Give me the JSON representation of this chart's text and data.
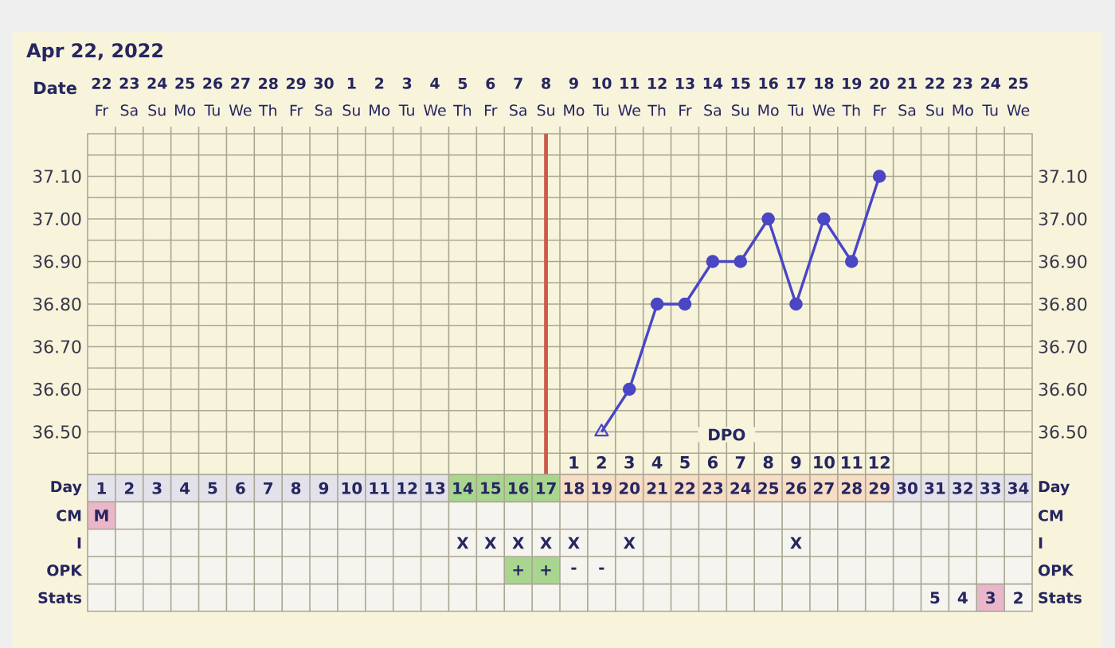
{
  "chart_data": [
    {
      "type": "line",
      "title": "Apr 22, 2022",
      "xlabel": "Date",
      "x2label": "DPO",
      "xlim": [
        "2022-04-21T12:00",
        "2022-05-25T12:00"
      ],
      "xticks": [
        {
          "value": "2022-04-22",
          "label": "**22** Fr"
        },
        {
          "value": "2022-04-23",
          "label": "**23** Sa"
        },
        {
          "value": "2022-04-24",
          "label": "**24** Su"
        },
        {
          "value": "2022-04-25",
          "label": "**25** Mo"
        },
        {
          "value": "2022-04-26",
          "label": "**26** Tu"
        },
        {
          "value": "2022-04-27",
          "label": "**27** We"
        },
        {
          "value": "2022-04-28",
          "label": "**28** Th"
        },
        {
          "value": "2022-04-29",
          "label": "**29** Fr"
        },
        {
          "value": "2022-04-30",
          "label": "**30** Sa"
        },
        {
          "value": "2022-05-01",
          "label": "**1** Su"
        },
        {
          "value": "2022-05-02",
          "label": "**2** Mo"
        },
        {
          "value": "2022-05-03",
          "label": "**3** Tu"
        },
        {
          "value": "2022-05-04",
          "label": "**4** We"
        },
        {
          "value": "2022-05-05",
          "label": "**5** Th"
        },
        {
          "value": "2022-05-06",
          "label": "**6** Fr"
        },
        {
          "value": "2022-05-07",
          "label": "**7** Sa"
        },
        {
          "value": "2022-05-08",
          "label": "**8** Su"
        },
        {
          "value": "2022-05-09",
          "label": "**9** Mo"
        },
        {
          "value": "2022-05-10",
          "label": "**10** Tu"
        },
        {
          "value": "2022-05-11",
          "label": "**11** We"
        },
        {
          "value": "2022-05-12",
          "label": "**12** Th"
        },
        {
          "value": "2022-05-13",
          "label": "**13** Fr"
        },
        {
          "value": "2022-05-14",
          "label": "**14** Sa"
        },
        {
          "value": "2022-05-15",
          "label": "**15** Su"
        },
        {
          "value": "2022-05-16",
          "label": "**16** Mo"
        },
        {
          "value": "2022-05-17",
          "label": "**17** Tu"
        },
        {
          "value": "2022-05-18",
          "label": "**18** We"
        },
        {
          "value": "2022-05-19",
          "label": "**19** Th"
        },
        {
          "value": "2022-05-20",
          "label": "**20** Fr"
        },
        {
          "value": "2022-05-21",
          "label": "**21** Sa"
        },
        {
          "value": "2022-05-22",
          "label": "**22** Su"
        },
        {
          "value": "2022-05-23",
          "label": "**23** Mo"
        },
        {
          "value": "2022-05-24",
          "label": "**24** Tu"
        },
        {
          "value": "2022-05-25",
          "label": "**25** We"
        }
      ],
      "x2lim": [
        -16.5,
        17.5
      ],
      "x2ticks": [
        1,
        2,
        3,
        4,
        5,
        6,
        7,
        8,
        9,
        10,
        11,
        12
      ],
      "ylim": [
        36.4,
        37.2
      ],
      "yticks": [
        {
          "value": 36.45,
          "label": null
        },
        {
          "value": 36.5,
          "label": "36.50"
        },
        {
          "value": 36.55,
          "label": null
        },
        {
          "value": 36.6,
          "label": "36.60"
        },
        {
          "value": 36.65,
          "label": null
        },
        {
          "value": 36.7,
          "label": "36.70"
        },
        {
          "value": 36.75,
          "label": null
        },
        {
          "value": 36.8,
          "label": "36.80"
        },
        {
          "value": 36.85,
          "label": null
        },
        {
          "value": 36.9,
          "label": "36.90"
        },
        {
          "value": 36.95,
          "label": null
        },
        {
          "value": 37.0,
          "label": "37.00"
        },
        {
          "value": 37.05,
          "label": null
        },
        {
          "value": 37.1,
          "label": "37.10"
        },
        {
          "value": 37.15,
          "label": null
        }
      ],
      "y2lim": [
        36.4,
        37.2
      ],
      "y2ticks": [
        {
          "value": 36.45,
          "label": null
        },
        {
          "value": 36.5,
          "label": "36.50"
        },
        {
          "value": 36.55,
          "label": null
        },
        {
          "value": 36.6,
          "label": "36.60"
        },
        {
          "value": 36.65,
          "label": null
        },
        {
          "value": 36.7,
          "label": "36.70"
        },
        {
          "value": 36.75,
          "label": null
        },
        {
          "value": 36.8,
          "label": "36.80"
        },
        {
          "value": 36.85,
          "label": null
        },
        {
          "value": 36.9,
          "label": "36.90"
        },
        {
          "value": 36.95,
          "label": null
        },
        {
          "value": 37.0,
          "label": "37.00"
        },
        {
          "value": 37.05,
          "label": null
        },
        {
          "value": 37.1,
          "label": "37.10"
        },
        {
          "value": 37.15,
          "label": null
        }
      ],
      "grid": true,
      "series": [
        {
          "type": "line",
          "color": "#4a46c4",
          "x": [
            "2022-05-10",
            "2022-05-11",
            "2022-05-12",
            "2022-05-13",
            "2022-05-14",
            "2022-05-15",
            "2022-05-16",
            "2022-05-17",
            "2022-05-18",
            "2022-05-19",
            "2022-05-20"
          ],
          "values": [
            36.5,
            36.6,
            36.8,
            36.8,
            36.9,
            36.9,
            37.0,
            36.8,
            37.0,
            36.9,
            37.1
          ]
        },
        {
          "type": "scatter",
          "color": "#4a46c4",
          "marker": "circle",
          "x": [
            "2022-05-11",
            "2022-05-12",
            "2022-05-13",
            "2022-05-14",
            "2022-05-15",
            "2022-05-16",
            "2022-05-17",
            "2022-05-18",
            "2022-05-19",
            "2022-05-20"
          ],
          "values": [
            36.6,
            36.8,
            36.8,
            36.9,
            36.9,
            37.0,
            36.8,
            37.0,
            36.9,
            37.1
          ]
        },
        {
          "type": "scatter",
          "color": "#4a46c4",
          "marker": "triangle",
          "x": [
            "2022-05-10"
          ],
          "values": [
            36.5
          ]
        }
      ],
      "ref_lines": [
        {
          "axis": "x",
          "value": "2022-05-08",
          "color": "#cc5a4c"
        }
      ]
    },
    {
      "type": "heatmap",
      "categories": [
        null,
        null,
        null,
        null,
        null,
        null,
        null,
        null,
        null,
        null,
        null,
        null,
        null,
        null,
        null,
        null,
        null,
        null,
        null,
        null,
        null,
        null,
        null,
        null,
        null,
        null,
        null,
        null,
        null,
        null,
        null,
        null,
        null,
        null
      ],
      "y_categories": [
        "Day",
        "CM",
        "I",
        "OPK",
        "Stats"
      ],
      "y2_categories": [
        "Day",
        "CM",
        "I",
        "OPK",
        "Stats"
      ],
      "cells": [
        [
          null,
          null,
          null,
          null,
          null,
          null,
          null,
          null,
          null,
          null,
          null,
          null,
          null,
          null,
          null,
          null,
          null,
          null,
          null,
          null,
          null,
          null,
          null,
          null,
          null,
          null,
          null,
          null,
          null,
          null,
          null,
          null,
          null,
          null
        ],
        [
          null,
          null,
          null,
          null,
          null,
          null,
          null,
          null,
          null,
          null,
          null,
          null,
          null,
          null,
          null,
          null,
          null,
          null,
          null,
          null,
          null,
          null,
          null,
          null,
          null,
          null,
          null,
          null,
          null,
          null,
          null,
          null,
          null,
          null
        ],
        [
          null,
          null,
          null,
          null,
          null,
          null,
          null,
          null,
          null,
          null,
          null,
          null,
          null,
          null,
          null,
          null,
          null,
          null,
          null,
          null,
          null,
          null,
          null,
          null,
          null,
          null,
          null,
          null,
          null,
          null,
          null,
          null,
          null,
          null
        ],
        [
          null,
          null,
          null,
          null,
          null,
          null,
          null,
          null,
          null,
          null,
          null,
          null,
          null,
          null,
          null,
          null,
          null,
          null,
          null,
          null,
          null,
          null,
          null,
          null,
          null,
          null,
          null,
          null,
          null,
          null,
          null,
          null,
          null,
          null
        ],
        [
          null,
          null,
          null,
          null,
          null,
          null,
          null,
          null,
          null,
          null,
          null,
          null,
          null,
          null,
          null,
          null,
          null,
          null,
          null,
          null,
          null,
          null,
          null,
          null,
          null,
          null,
          null,
          null,
          null,
          null,
          null,
          null,
          null,
          null
        ]
      ],
      "cell_labels": [
        [
          "1",
          "2",
          "3",
          "4",
          "5",
          "6",
          "7",
          "8",
          "9",
          "10",
          "11",
          "12",
          "13",
          "14",
          "15",
          "16",
          "17",
          "18",
          "19",
          "20",
          "21",
          "22",
          "23",
          "24",
          "25",
          "26",
          "27",
          "28",
          "29",
          "30",
          "31",
          "32",
          "33",
          "34"
        ],
        [
          "M",
          null,
          null,
          null,
          null,
          null,
          null,
          null,
          null,
          null,
          null,
          null,
          null,
          null,
          null,
          null,
          null,
          null,
          null,
          null,
          null,
          null,
          null,
          null,
          null,
          null,
          null,
          null,
          null,
          null,
          null,
          null,
          null,
          null
        ],
        [
          null,
          null,
          null,
          null,
          null,
          null,
          null,
          null,
          null,
          null,
          null,
          null,
          null,
          "X",
          "X",
          "X",
          "X",
          "X",
          null,
          "X",
          null,
          null,
          null,
          null,
          null,
          "X",
          null,
          null,
          null,
          null,
          null,
          null,
          null,
          null
        ],
        [
          null,
          null,
          null,
          null,
          null,
          null,
          null,
          null,
          null,
          null,
          null,
          null,
          null,
          null,
          null,
          "+",
          "+",
          "-",
          "-",
          null,
          null,
          null,
          null,
          null,
          null,
          null,
          null,
          null,
          null,
          null,
          null,
          null,
          null,
          null
        ],
        [
          null,
          null,
          null,
          null,
          null,
          null,
          null,
          null,
          null,
          null,
          null,
          null,
          null,
          null,
          null,
          null,
          null,
          null,
          null,
          null,
          null,
          null,
          null,
          null,
          null,
          null,
          null,
          null,
          null,
          null,
          "5",
          "4",
          "3",
          "2"
        ]
      ],
      "colors": [
        [
          "#e3e2eb",
          "#e3e2eb",
          "#e3e2eb",
          "#e3e2eb",
          "#e3e2eb",
          "#e3e2eb",
          "#e3e2eb",
          "#e3e2eb",
          "#e3e2eb",
          "#e3e2eb",
          "#e3e2eb",
          "#e3e2eb",
          "#e3e2eb",
          "#a9d68f",
          "#a9d68f",
          "#a9d68f",
          "#a9d68f",
          "#f6ddc4",
          "#f6ddc4",
          "#f6ddc4",
          "#f6ddc4",
          "#f6ddc4",
          "#f6ddc4",
          "#f6ddc4",
          "#f6ddc4",
          "#f6ddc4",
          "#f6ddc4",
          "#f6ddc4",
          "#f6ddc4",
          "#e3e2eb",
          "#e3e2eb",
          "#e3e2eb",
          "#e3e2eb",
          "#e3e2eb"
        ],
        [
          "#e9b6ca",
          null,
          null,
          null,
          null,
          null,
          null,
          null,
          null,
          null,
          null,
          null,
          null,
          null,
          null,
          null,
          null,
          null,
          null,
          null,
          null,
          null,
          null,
          null,
          null,
          null,
          null,
          null,
          null,
          null,
          null,
          null,
          null,
          null
        ],
        [
          null,
          null,
          null,
          null,
          null,
          null,
          null,
          null,
          null,
          null,
          null,
          null,
          null,
          null,
          null,
          null,
          null,
          null,
          null,
          null,
          null,
          null,
          null,
          null,
          null,
          null,
          null,
          null,
          null,
          null,
          null,
          null,
          null,
          null
        ],
        [
          null,
          null,
          null,
          null,
          null,
          null,
          null,
          null,
          null,
          null,
          null,
          null,
          null,
          null,
          null,
          "#a9d68f",
          "#a9d68f",
          null,
          null,
          null,
          null,
          null,
          null,
          null,
          null,
          null,
          null,
          null,
          null,
          null,
          null,
          null,
          null,
          null
        ],
        [
          null,
          null,
          null,
          null,
          null,
          null,
          null,
          null,
          null,
          null,
          null,
          null,
          null,
          null,
          null,
          null,
          null,
          null,
          null,
          null,
          null,
          null,
          null,
          null,
          null,
          null,
          null,
          null,
          null,
          null,
          null,
          null,
          "#e9b6ca",
          null
        ]
      ]
    }
  ]
}
